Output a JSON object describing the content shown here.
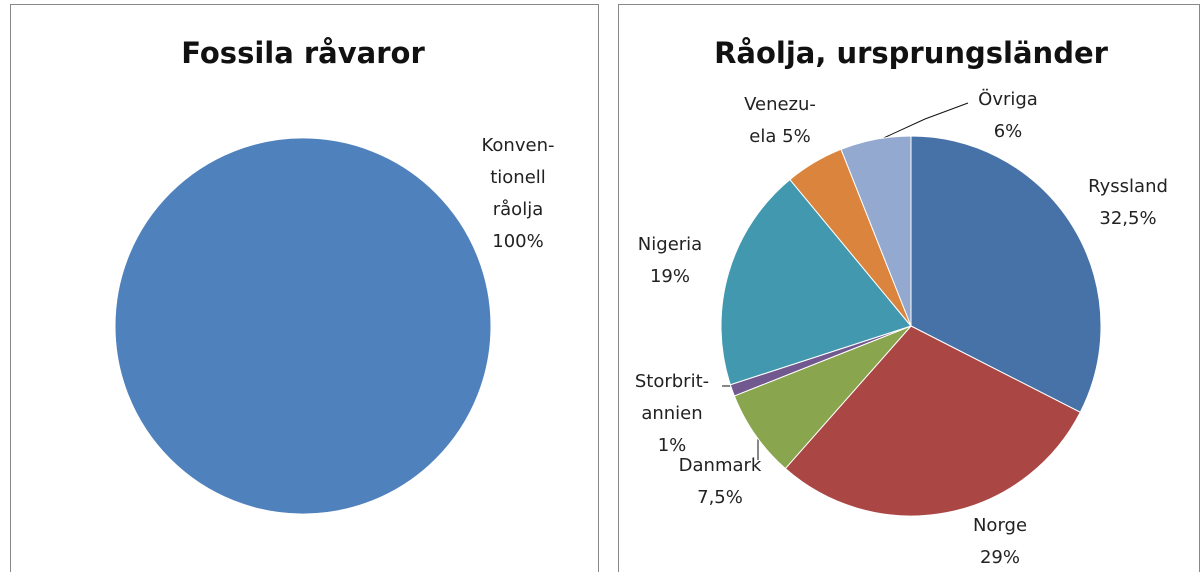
{
  "chart_data": [
    {
      "type": "pie",
      "title": "Fossila råvaror",
      "categories": [
        "Konven-\ntionell\nråolja"
      ],
      "values": [
        100
      ],
      "value_labels": [
        "100%"
      ],
      "colors": [
        "#4f81bd"
      ]
    },
    {
      "type": "pie",
      "title": "Råolja, ursprungsländer",
      "categories": [
        "Ryssland",
        "Norge",
        "Danmark",
        "Storbrit-\nannien",
        "Nigeria",
        "Venezu-\nela",
        "Övriga"
      ],
      "values": [
        32.5,
        29,
        7.5,
        1,
        19,
        5,
        6
      ],
      "value_labels": [
        "32,5%",
        "29%",
        "7,5%",
        "1%",
        "19%",
        "5%",
        "6%"
      ],
      "colors": [
        "#4672a8",
        "#aa4644",
        "#89a54e",
        "#71588f",
        "#4198af",
        "#db843d",
        "#93a9cf"
      ]
    }
  ]
}
